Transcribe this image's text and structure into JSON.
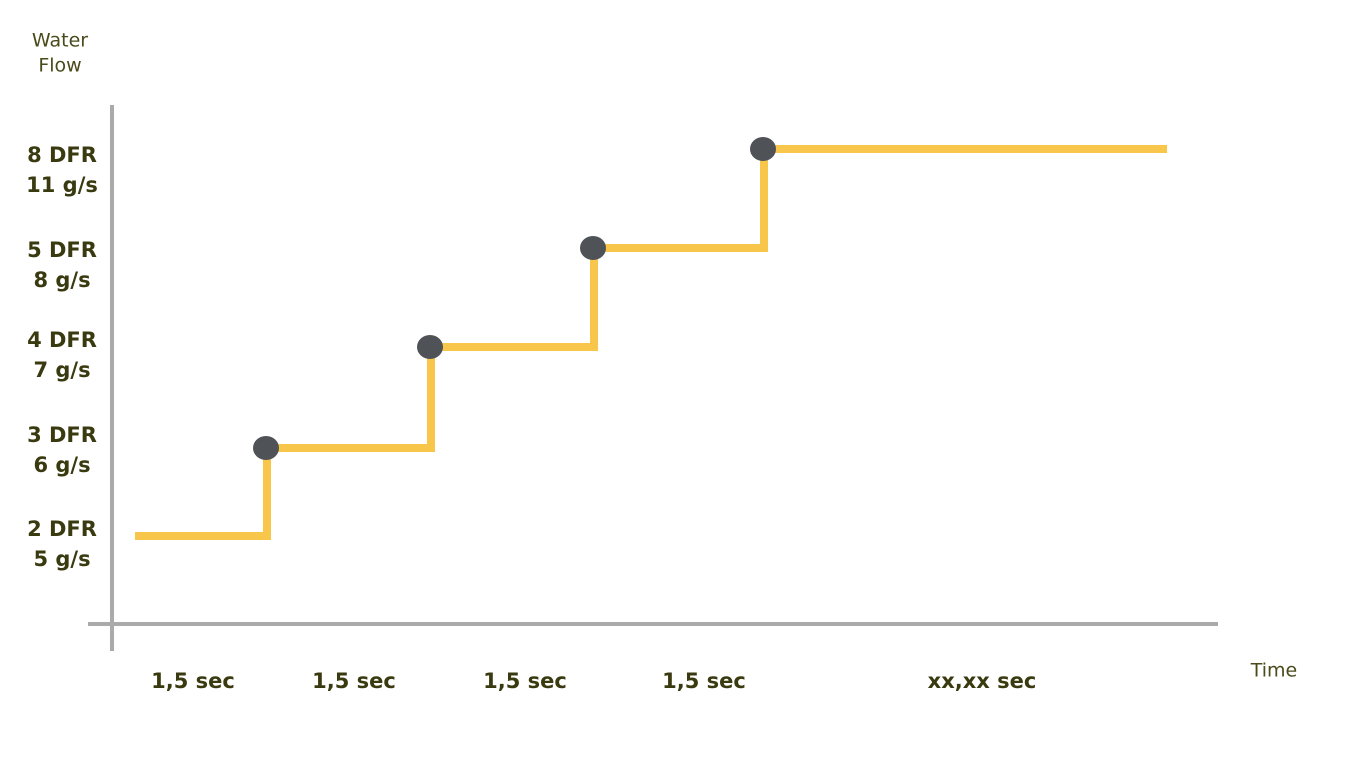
{
  "y_axis": {
    "title_lines": [
      "Water",
      "Flow"
    ],
    "levels": [
      {
        "dfr": "2 DFR",
        "flow": "5 g/s"
      },
      {
        "dfr": "3 DFR",
        "flow": "6 g/s"
      },
      {
        "dfr": "4 DFR",
        "flow": "7 g/s"
      },
      {
        "dfr": "5 DFR",
        "flow": "8 g/s"
      },
      {
        "dfr": "8 DFR",
        "flow": "11 g/s"
      }
    ]
  },
  "x_axis": {
    "title": "Time",
    "segments": [
      "1,5 sec",
      "1,5 sec",
      "1,5 sec",
      "1,5 sec",
      "xx,xx sec"
    ]
  }
}
